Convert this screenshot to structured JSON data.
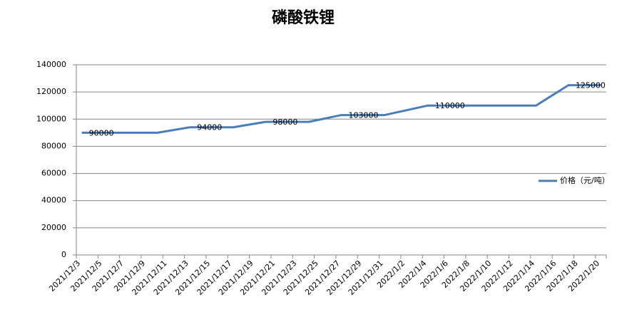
{
  "chart_data": {
    "type": "line",
    "title": "磷酸铁锂",
    "x": [
      "2021/12/3",
      "2021/12/10",
      "2021/12/13",
      "2021/12/17",
      "2021/12/20",
      "2021/12/24",
      "2021/12/27",
      "2021/12/31",
      "2022/1/4",
      "2022/1/14",
      "2022/1/17",
      "2022/1/20"
    ],
    "series": [
      {
        "name": "价格（元/吨）",
        "color": "#4a7ebb",
        "values": [
          90000,
          90000,
          94000,
          94000,
          98000,
          98000,
          103000,
          103000,
          110000,
          110000,
          125000,
          125000
        ],
        "value_labels": [
          "90000",
          null,
          "94000",
          null,
          "98000",
          null,
          "103000",
          null,
          "110000",
          null,
          "125000",
          null
        ]
      }
    ],
    "xlim": [
      "2021/12/3",
      "2022/1/20"
    ],
    "xticks": [
      "2021/12/3",
      "2021/12/5",
      "2021/12/7",
      "2021/12/9",
      "2021/12/11",
      "2021/12/13",
      "2021/12/15",
      "2021/12/17",
      "2021/12/19",
      "2021/12/21",
      "2021/12/23",
      "2021/12/25",
      "2021/12/27",
      "2021/12/29",
      "2021/12/31",
      "2022/1/2",
      "2022/1/4",
      "2022/1/6",
      "2022/1/8",
      "2022/1/10",
      "2022/1/12",
      "2022/1/14",
      "2022/1/16",
      "2022/1/18",
      "2022/1/20"
    ],
    "ylim": [
      0,
      140000
    ],
    "yticks": [
      0,
      20000,
      40000,
      60000,
      80000,
      100000,
      120000,
      140000
    ],
    "grid": true,
    "legend": "right"
  }
}
